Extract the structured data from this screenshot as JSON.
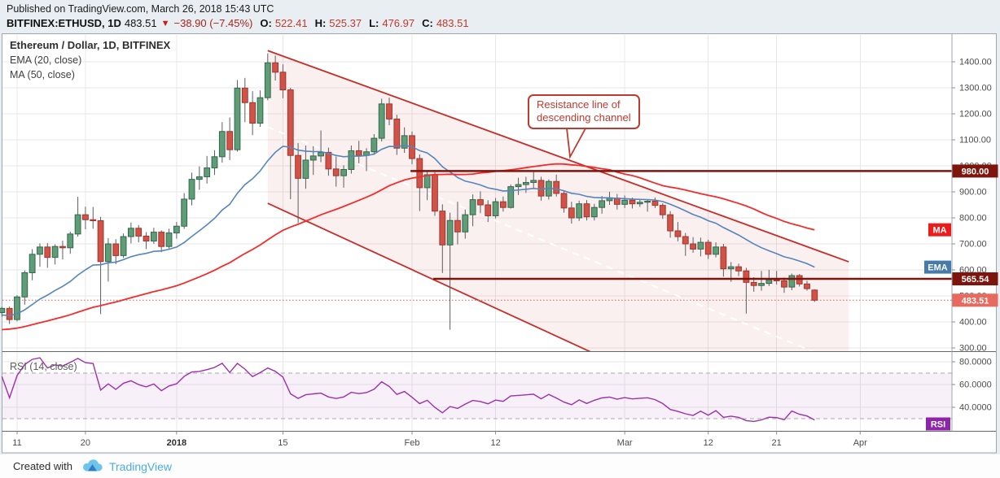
{
  "header": {
    "published_line": "Published on TradingView.com, March 26, 2018 15:43 UTC",
    "symbol": "BITFINEX:ETHUSD, 1D",
    "last_price": "483.51",
    "direction_symbol": "▼",
    "change": "−38.90 (−7.45%)",
    "o_label": "O:",
    "o_value": "522.41",
    "h_label": "H:",
    "h_value": "525.37",
    "l_label": "L:",
    "l_value": "476.97",
    "c_label": "C:",
    "c_value": "483.51"
  },
  "legend": {
    "title": "Ethereum / Dollar, 1D, BITFINEX",
    "ema_label": "EMA (20, close)",
    "ma_label": "MA (50, close)"
  },
  "rsi_pane_label": "RSI (14, close)",
  "annotation": {
    "line1": "Resistance line of",
    "line2": "descending channel"
  },
  "footer": {
    "created": "Created with",
    "brand": "TradingView"
  },
  "colors": {
    "page_bg": "#e9eef3",
    "pane_bg": "#ffffff",
    "grid": "#e7e7e7",
    "candle_up": "#5f9d77",
    "candle_up_border": "#33664d",
    "candle_down": "#d15348",
    "candle_down_border": "#9f352c",
    "wick": "#5a5d61",
    "ema_line": "#5585bd",
    "ma_line": "#f32c2c",
    "channel_line": "#c4302b",
    "channel_fill": "rgba(196,48,43,0.07)",
    "channel_median": "#ffffff",
    "level_line": "#7e150d",
    "level_badge": "#7e150d",
    "last_price_line": "#e05a4e",
    "last_price_badge": "#e8695e",
    "ma_badge": "#ec1c1c",
    "ema_badge": "#447bab",
    "rsi_line": "#9b30ab",
    "rsi_band_fill": "rgba(155,48,171,0.07)",
    "rsi_band_dash": "#a8a8a8",
    "rsi_badge": "#8e24aa",
    "axis_text": "#4c4c4c",
    "separator": "#62676d",
    "border": "#9fa6ad"
  },
  "chart_data": {
    "type": "candlestick",
    "symbol": "BITFINEX:ETHUSD",
    "timeframe": "1D",
    "price_axis_ticks": [
      1400,
      1300,
      1200,
      1100,
      1000,
      900,
      800,
      700,
      600,
      500,
      400,
      300
    ],
    "rsi_axis_ticks": [
      80,
      60,
      40
    ],
    "rsi_band": [
      70,
      30
    ],
    "time_axis_labels": [
      {
        "label": "11",
        "index": 2
      },
      {
        "label": "20",
        "index": 11
      },
      {
        "label": "2018",
        "index": 23,
        "bold": true
      },
      {
        "label": "15",
        "index": 37
      },
      {
        "label": "Feb",
        "index": 54
      },
      {
        "label": "12",
        "index": 65
      },
      {
        "label": "Mar",
        "index": 82
      },
      {
        "label": "12",
        "index": 93
      },
      {
        "label": "21",
        "index": 102
      },
      {
        "label": "Apr",
        "index": 113
      }
    ],
    "indicators": [
      {
        "name": "EMA",
        "period": 20,
        "source": "close"
      },
      {
        "name": "MA",
        "period": 50,
        "source": "close"
      },
      {
        "name": "RSI",
        "period": 14,
        "source": "close"
      }
    ],
    "axis_badges": {
      "ma": "MA",
      "ema": "EMA",
      "rsi": "RSI"
    },
    "levels": [
      {
        "price": 980.0,
        "label": "980.00",
        "start_index": 53.8
      },
      {
        "price": 565.54,
        "label": "565.54",
        "start_index": 56.8
      }
    ],
    "last_price": {
      "price": 483.51,
      "label": "483.51"
    },
    "channel": {
      "start_index": 35,
      "end_index": 111.5,
      "top_start_price": 1443,
      "top_end_price": 631,
      "bottom_start_price": 856,
      "bottom_end_price": -172,
      "median_dashed": true
    },
    "history_closes": [
      302,
      305,
      300,
      296,
      301,
      304,
      308,
      306,
      310,
      314,
      311,
      316,
      320,
      325,
      322,
      327,
      334,
      331,
      337,
      344,
      348,
      345,
      352,
      358,
      363,
      360,
      367,
      372,
      369,
      376,
      382,
      379,
      386,
      392,
      397,
      402,
      409,
      406,
      413,
      419,
      426,
      432,
      441,
      448,
      452,
      438,
      458,
      444,
      466,
      451
    ],
    "candles": [
      [
        "2017-12-09",
        436,
        458,
        420,
        452
      ],
      [
        "2017-12-10",
        452,
        459,
        392,
        409
      ],
      [
        "2017-12-11",
        409,
        503,
        402,
        496
      ],
      [
        "2017-12-12",
        496,
        598,
        466,
        589
      ],
      [
        "2017-12-13",
        589,
        680,
        560,
        660
      ],
      [
        "2017-12-14",
        660,
        702,
        612,
        688
      ],
      [
        "2017-12-15",
        688,
        703,
        608,
        648
      ],
      [
        "2017-12-16",
        648,
        698,
        621,
        690
      ],
      [
        "2017-12-17",
        690,
        712,
        640,
        685
      ],
      [
        "2017-12-18",
        685,
        747,
        662,
        738
      ],
      [
        "2017-12-19",
        738,
        881,
        728,
        812
      ],
      [
        "2017-12-20",
        812,
        843,
        756,
        793
      ],
      [
        "2017-12-21",
        793,
        842,
        758,
        789
      ],
      [
        "2017-12-22",
        789,
        804,
        430,
        632
      ],
      [
        "2017-12-23",
        632,
        722,
        555,
        700
      ],
      [
        "2017-12-24",
        700,
        718,
        622,
        655
      ],
      [
        "2017-12-25",
        655,
        740,
        646,
        728
      ],
      [
        "2017-12-26",
        728,
        782,
        702,
        760
      ],
      [
        "2017-12-27",
        760,
        772,
        706,
        730
      ],
      [
        "2017-12-28",
        730,
        745,
        680,
        711
      ],
      [
        "2017-12-29",
        711,
        762,
        700,
        745
      ],
      [
        "2017-12-30",
        745,
        752,
        668,
        690
      ],
      [
        "2017-12-31",
        690,
        758,
        682,
        742
      ],
      [
        "2018-01-01",
        742,
        784,
        720,
        768
      ],
      [
        "2018-01-02",
        768,
        895,
        758,
        872
      ],
      [
        "2018-01-03",
        872,
        974,
        848,
        948
      ],
      [
        "2018-01-04",
        948,
        998,
        908,
        958
      ],
      [
        "2018-01-05",
        958,
        1038,
        932,
        992
      ],
      [
        "2018-01-06",
        992,
        1060,
        965,
        1035
      ],
      [
        "2018-01-07",
        1035,
        1168,
        1012,
        1132
      ],
      [
        "2018-01-08",
        1132,
        1186,
        1022,
        1062
      ],
      [
        "2018-01-09",
        1062,
        1330,
        1055,
        1299
      ],
      [
        "2018-01-10",
        1299,
        1338,
        1168,
        1243
      ],
      [
        "2018-01-11",
        1243,
        1287,
        1118,
        1164
      ],
      [
        "2018-01-12",
        1164,
        1290,
        1150,
        1262
      ],
      [
        "2018-01-13",
        1262,
        1432,
        1252,
        1396
      ],
      [
        "2018-01-14",
        1396,
        1424,
        1328,
        1360
      ],
      [
        "2018-01-15",
        1360,
        1390,
        1260,
        1292
      ],
      [
        "2018-01-16",
        1292,
        1300,
        872,
        1040
      ],
      [
        "2018-01-17",
        1040,
        1088,
        780,
        952
      ],
      [
        "2018-01-18",
        952,
        1078,
        912,
        1022
      ],
      [
        "2018-01-19",
        1022,
        1076,
        965,
        1038
      ],
      [
        "2018-01-20",
        1038,
        1136,
        1014,
        1052
      ],
      [
        "2018-01-21",
        1052,
        1070,
        962,
        988
      ],
      [
        "2018-01-22",
        988,
        1036,
        920,
        962
      ],
      [
        "2018-01-23",
        962,
        1002,
        916,
        986
      ],
      [
        "2018-01-24",
        986,
        1078,
        970,
        1058
      ],
      [
        "2018-01-25",
        1058,
        1096,
        1010,
        1040
      ],
      [
        "2018-01-26",
        1040,
        1068,
        980,
        1054
      ],
      [
        "2018-01-27",
        1054,
        1122,
        1042,
        1106
      ],
      [
        "2018-01-28",
        1106,
        1258,
        1094,
        1238
      ],
      [
        "2018-01-29",
        1238,
        1262,
        1156,
        1180
      ],
      [
        "2018-01-30",
        1180,
        1196,
        1042,
        1068
      ],
      [
        "2018-01-31",
        1068,
        1148,
        1050,
        1116
      ],
      [
        "2018-02-01",
        1116,
        1132,
        1006,
        1028
      ],
      [
        "2018-02-02",
        1028,
        1044,
        826,
        916
      ],
      [
        "2018-02-03",
        916,
        982,
        868,
        966
      ],
      [
        "2018-02-04",
        966,
        976,
        808,
        826
      ],
      [
        "2018-02-05",
        826,
        852,
        588,
        696
      ],
      [
        "2018-02-06",
        696,
        820,
        370,
        790
      ],
      [
        "2018-02-07",
        790,
        862,
        698,
        746
      ],
      [
        "2018-02-08",
        746,
        832,
        720,
        812
      ],
      [
        "2018-02-09",
        812,
        890,
        768,
        870
      ],
      [
        "2018-02-10",
        870,
        902,
        818,
        850
      ],
      [
        "2018-02-11",
        850,
        868,
        784,
        808
      ],
      [
        "2018-02-12",
        808,
        876,
        798,
        862
      ],
      [
        "2018-02-13",
        862,
        882,
        824,
        840
      ],
      [
        "2018-02-14",
        840,
        928,
        836,
        920
      ],
      [
        "2018-02-15",
        920,
        954,
        888,
        928
      ],
      [
        "2018-02-16",
        928,
        958,
        896,
        936
      ],
      [
        "2018-02-17",
        936,
        976,
        914,
        944
      ],
      [
        "2018-02-18",
        944,
        958,
        866,
        884
      ],
      [
        "2018-02-19",
        884,
        948,
        870,
        940
      ],
      [
        "2018-02-20",
        940,
        966,
        882,
        894
      ],
      [
        "2018-02-21",
        894,
        906,
        820,
        838
      ],
      [
        "2018-02-22",
        838,
        862,
        778,
        800
      ],
      [
        "2018-02-23",
        800,
        866,
        788,
        854
      ],
      [
        "2018-02-24",
        854,
        868,
        790,
        804
      ],
      [
        "2018-02-25",
        804,
        854,
        790,
        840
      ],
      [
        "2018-02-26",
        840,
        884,
        816,
        866
      ],
      [
        "2018-02-27",
        866,
        900,
        850,
        876
      ],
      [
        "2018-02-28",
        876,
        892,
        832,
        852
      ],
      [
        "2018-03-01",
        852,
        886,
        838,
        868
      ],
      [
        "2018-03-02",
        868,
        878,
        836,
        854
      ],
      [
        "2018-03-03",
        854,
        872,
        842,
        860
      ],
      [
        "2018-03-04",
        860,
        872,
        824,
        864
      ],
      [
        "2018-03-05",
        864,
        878,
        838,
        848
      ],
      [
        "2018-03-06",
        848,
        856,
        796,
        812
      ],
      [
        "2018-03-07",
        812,
        826,
        724,
        750
      ],
      [
        "2018-03-08",
        750,
        784,
        710,
        728
      ],
      [
        "2018-03-09",
        728,
        742,
        654,
        700
      ],
      [
        "2018-03-10",
        700,
        726,
        666,
        680
      ],
      [
        "2018-03-11",
        680,
        724,
        652,
        706
      ],
      [
        "2018-03-12",
        706,
        716,
        642,
        660
      ],
      [
        "2018-03-13",
        660,
        706,
        648,
        688
      ],
      [
        "2018-03-14",
        688,
        700,
        574,
        604
      ],
      [
        "2018-03-15",
        604,
        630,
        554,
        612
      ],
      [
        "2018-03-16",
        612,
        624,
        576,
        596
      ],
      [
        "2018-03-17",
        596,
        608,
        432,
        552
      ],
      [
        "2018-03-18",
        552,
        572,
        516,
        540
      ],
      [
        "2018-03-19",
        540,
        596,
        520,
        548
      ],
      [
        "2018-03-20",
        548,
        600,
        538,
        562
      ],
      [
        "2018-03-21",
        562,
        596,
        544,
        558
      ],
      [
        "2018-03-22",
        558,
        570,
        512,
        534
      ],
      [
        "2018-03-23",
        534,
        586,
        522,
        578
      ],
      [
        "2018-03-24",
        578,
        584,
        536,
        546
      ],
      [
        "2018-03-25",
        546,
        558,
        520,
        528
      ],
      [
        "2018-03-26",
        522.41,
        525.37,
        476.97,
        483.51
      ]
    ]
  }
}
